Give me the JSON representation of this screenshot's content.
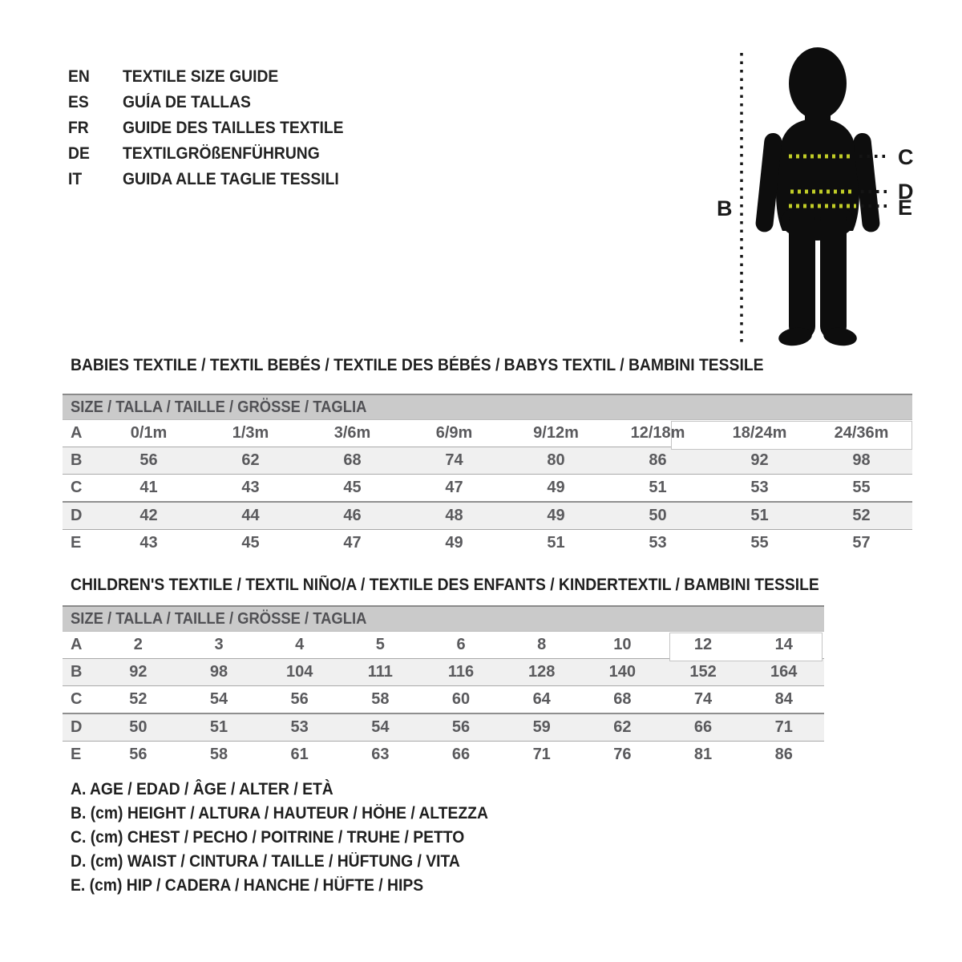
{
  "languages": [
    {
      "code": "EN",
      "title": "TEXTILE SIZE GUIDE"
    },
    {
      "code": "ES",
      "title": "GUÍA DE TALLAS"
    },
    {
      "code": "FR",
      "title": "GUIDE DES TAILLES TEXTILE"
    },
    {
      "code": "DE",
      "title": "TEXTILGRÖßENFÜHRUNG"
    },
    {
      "code": "IT",
      "title": "GUIDA ALLE TAGLIE TESSILI"
    }
  ],
  "figure": {
    "labels": {
      "height": "B",
      "chest": "C",
      "waist": "D",
      "hip": "E"
    }
  },
  "babies_table": {
    "title": "BABIES TEXTILE / TEXTIL BEBÉS / TEXTILE DES BÉBÉS / BABYS TEXTIL / BAMBINI TESSILE",
    "header": "SIZE / TALLA / TAILLE / GRÖSSE / TAGLIA",
    "rows": [
      {
        "label": "A",
        "values": [
          "0/1m",
          "1/3m",
          "3/6m",
          "6/9m",
          "9/12m",
          "12/18m",
          "18/24m",
          "24/36m"
        ]
      },
      {
        "label": "B",
        "values": [
          "56",
          "62",
          "68",
          "74",
          "80",
          "86",
          "92",
          "98"
        ]
      },
      {
        "label": "C",
        "values": [
          "41",
          "43",
          "45",
          "47",
          "49",
          "51",
          "53",
          "55"
        ]
      },
      {
        "label": "D",
        "values": [
          "42",
          "44",
          "46",
          "48",
          "49",
          "50",
          "51",
          "52"
        ]
      },
      {
        "label": "E",
        "values": [
          "43",
          "45",
          "47",
          "49",
          "51",
          "53",
          "55",
          "57"
        ]
      }
    ]
  },
  "children_table": {
    "title": "CHILDREN'S TEXTILE / TEXTIL NIÑO/A / TEXTILE DES ENFANTS / KINDERTEXTIL / BAMBINI TESSILE",
    "header": "SIZE / TALLA / TAILLE / GRÖSSE / TAGLIA",
    "rows": [
      {
        "label": "A",
        "values": [
          "2",
          "3",
          "4",
          "5",
          "6",
          "8",
          "10",
          "12",
          "14"
        ]
      },
      {
        "label": "B",
        "values": [
          "92",
          "98",
          "104",
          "111",
          "116",
          "128",
          "140",
          "152",
          "164"
        ]
      },
      {
        "label": "C",
        "values": [
          "52",
          "54",
          "56",
          "58",
          "60",
          "64",
          "68",
          "74",
          "84"
        ]
      },
      {
        "label": "D",
        "values": [
          "50",
          "51",
          "53",
          "54",
          "56",
          "59",
          "62",
          "66",
          "71"
        ]
      },
      {
        "label": "E",
        "values": [
          "56",
          "58",
          "61",
          "63",
          "66",
          "71",
          "76",
          "81",
          "86"
        ]
      }
    ]
  },
  "legend": [
    "A. AGE / EDAD / ÂGE / ALTER / ETÀ",
    "B. (cm) HEIGHT / ALTURA / HAUTEUR / HÖHE / ALTEZZA",
    "C. (cm) CHEST / PECHO / POITRINE / TRUHE / PETTO",
    "D. (cm) WAIST / CINTURA / TAILLE / HÜFTUNG / VITA",
    "E. (cm) HIP / CADERA / HANCHE / HÜFTE / HIPS"
  ],
  "colors": {
    "accent_dash": "#c1cd27",
    "table_header_bg": "#cacaca",
    "stripe_bg": "#f0f0f0",
    "table_text": "#5a5a5d",
    "silhouette": "#0d0d0d"
  }
}
